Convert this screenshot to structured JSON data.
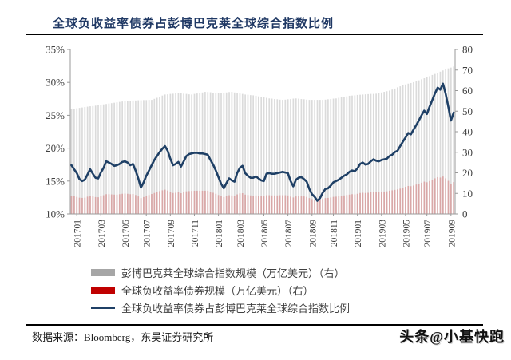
{
  "page": {
    "title": "全球负收益率债券占彭博巴克莱全球综合指数比例",
    "source_note": "数据来源：Bloomberg，东吴证券研究所",
    "watermark": "头条@小基快跑"
  },
  "colors": {
    "title_navy": "#1f3864",
    "line_navy": "#1f4066",
    "bar_gray": "#dbdbdb",
    "bar_red": "#d9a7a7",
    "legend_gray": "#a6a6a6",
    "legend_red": "#c00000",
    "axis_text": "#404040",
    "axis_line": "#9a9a9a"
  },
  "chart_data": {
    "type": "bar+line",
    "title": "全球负收益率债券占彭博巴克莱全球综合指数比例",
    "xlabel": "",
    "ylabel_left": "%",
    "ylabel_right": "万亿美元",
    "grid": false,
    "legend_position": "bottom-left",
    "left_axis": {
      "min": 10,
      "max": 35,
      "tick_values": [
        35,
        30,
        25,
        20,
        15,
        10
      ],
      "tick_labels": [
        "35%",
        "30%",
        "25%",
        "20%",
        "15%",
        "10%"
      ]
    },
    "right_axis": {
      "min": 0,
      "max": 80,
      "tick_values": [
        80,
        70,
        60,
        50,
        40,
        30,
        20,
        10,
        0
      ],
      "tick_labels": [
        "80",
        "70",
        "60",
        "50",
        "40",
        "30",
        "20",
        "10",
        "0"
      ]
    },
    "x_tick_labels": [
      "201701",
      "201703",
      "201705",
      "201707",
      "201709",
      "201711",
      "201801",
      "201803",
      "201805",
      "201807",
      "201809",
      "201811",
      "201901",
      "201903",
      "201905",
      "201907",
      "201909"
    ],
    "x_tick_week_indices": [
      2,
      11,
      20,
      28,
      37,
      46,
      55,
      63,
      72,
      81,
      90,
      98,
      107,
      116,
      125,
      133,
      142
    ],
    "x_resolution": "weekly, 2017-01 to 2019-09",
    "series": [
      {
        "name": "彭博巴克莱全球综合指数规模（万亿美元）（右）",
        "type": "bar",
        "axis": "right",
        "color": "#dbdbdb",
        "legend_color": "#a6a6a6",
        "values": [
          51.0,
          51.2,
          51.4,
          51.6,
          51.8,
          52.0,
          52.2,
          52.4,
          52.5,
          52.7,
          52.9,
          53.1,
          53.3,
          53.5,
          53.7,
          53.9,
          54.1,
          54.3,
          54.5,
          54.7,
          54.9,
          55.0,
          55.1,
          55.2,
          55.2,
          55.3,
          55.3,
          55.4,
          55.4,
          55.5,
          55.5,
          56.0,
          56.5,
          57.0,
          57.6,
          58.1,
          58.2,
          58.4,
          58.5,
          58.7,
          58.8,
          58.7,
          58.5,
          58.4,
          58.2,
          58.1,
          58.4,
          58.6,
          58.9,
          59.1,
          59.4,
          59.3,
          59.2,
          59.0,
          58.9,
          58.8,
          58.9,
          59.0,
          59.1,
          59.3,
          59.4,
          59.1,
          58.9,
          58.6,
          58.4,
          58.1,
          58.0,
          57.8,
          57.7,
          57.5,
          57.2,
          57.0,
          56.7,
          56.5,
          56.2,
          56.1,
          55.9,
          55.8,
          55.6,
          55.5,
          55.6,
          55.8,
          55.9,
          56.1,
          56.2,
          56.1,
          55.9,
          55.8,
          55.6,
          55.5,
          55.5,
          55.5,
          55.5,
          55.5,
          55.5,
          55.6,
          55.8,
          55.9,
          56.1,
          56.2,
          56.5,
          56.7,
          57.0,
          57.2,
          57.5,
          57.6,
          57.7,
          57.9,
          58.0,
          58.1,
          58.2,
          58.3,
          58.4,
          58.4,
          58.5,
          58.8,
          59.1,
          59.4,
          59.7,
          60.0,
          60.5,
          61.0,
          61.6,
          62.1,
          62.6,
          63.0,
          63.4,
          63.7,
          64.1,
          64.5,
          65.0,
          65.5,
          66.0,
          66.5,
          67.0,
          67.6,
          68.1,
          68.7,
          69.2,
          69.8,
          70.3,
          70.8,
          71.2,
          71.7
        ]
      },
      {
        "name": "全球负收益率债券规模（万亿美元）（右）",
        "type": "bar",
        "axis": "right",
        "color": "#d9a7a7",
        "legend_color": "#c00000",
        "values": [
          8.9,
          8.6,
          8.3,
          7.9,
          7.8,
          7.9,
          8.4,
          8.8,
          8.5,
          8.2,
          8.1,
          8.7,
          9.1,
          9.6,
          9.6,
          9.5,
          9.4,
          9.4,
          9.6,
          9.8,
          9.9,
          9.8,
          9.6,
          9.7,
          9.2,
          8.5,
          7.7,
          8.2,
          8.8,
          9.2,
          9.7,
          10.2,
          10.6,
          11.1,
          11.5,
          11.8,
          11.4,
          10.7,
          10.2,
          10.3,
          10.5,
          10.1,
          10.5,
          11.0,
          11.1,
          11.2,
          11.3,
          11.3,
          11.3,
          11.3,
          11.3,
          11.3,
          10.8,
          10.3,
          9.8,
          9.2,
          8.6,
          8.2,
          8.7,
          9.1,
          9.0,
          8.8,
          9.5,
          10.0,
          10.1,
          9.4,
          9.2,
          9.0,
          8.9,
          9.0,
          8.8,
          8.6,
          8.5,
          9.1,
          9.1,
          9.0,
          9.0,
          9.0,
          9.1,
          9.1,
          9.1,
          9.0,
          8.4,
          8.0,
          8.5,
          8.7,
          8.7,
          8.5,
          8.3,
          7.7,
          7.2,
          7.0,
          6.7,
          6.9,
          7.3,
          7.7,
          7.8,
          8.0,
          8.3,
          8.4,
          8.6,
          8.8,
          9.0,
          9.2,
          9.4,
          9.6,
          9.5,
          9.8,
          10.2,
          10.3,
          10.2,
          10.3,
          10.5,
          10.7,
          10.6,
          10.6,
          10.8,
          10.9,
          11.0,
          11.3,
          11.5,
          11.7,
          11.9,
          12.3,
          12.8,
          13.2,
          13.6,
          13.5,
          13.8,
          14.3,
          14.7,
          15.2,
          15.7,
          15.4,
          16.0,
          16.7,
          17.3,
          17.9,
          17.7,
          18.2,
          17.3,
          16.1,
          14.7,
          15.5
        ]
      },
      {
        "name": "全球负收益率债券占彭博巴克莱全球综合指数比例",
        "type": "line",
        "axis": "left",
        "color": "#1f4066",
        "legend_color": "#1f4066",
        "values": [
          17.4,
          16.8,
          16.2,
          15.3,
          15.0,
          15.2,
          16.0,
          16.8,
          16.1,
          15.5,
          15.4,
          16.3,
          17.0,
          18.0,
          17.8,
          17.6,
          17.3,
          17.4,
          17.6,
          17.9,
          18.0,
          17.8,
          17.4,
          17.6,
          16.6,
          15.4,
          14.0,
          14.8,
          15.8,
          16.6,
          17.4,
          18.2,
          18.8,
          19.4,
          19.9,
          20.3,
          19.6,
          18.4,
          17.4,
          17.6,
          17.9,
          17.2,
          18.0,
          18.8,
          19.1,
          19.2,
          19.3,
          19.3,
          19.2,
          19.2,
          19.1,
          19.0,
          18.2,
          17.5,
          16.6,
          15.6,
          14.6,
          13.9,
          14.7,
          15.4,
          15.1,
          14.9,
          16.2,
          17.0,
          17.3,
          16.2,
          15.8,
          15.5,
          15.5,
          15.7,
          15.4,
          15.1,
          15.0,
          16.1,
          16.2,
          16.1,
          16.1,
          16.2,
          16.3,
          16.4,
          16.3,
          16.2,
          15.0,
          14.2,
          15.2,
          15.5,
          15.6,
          15.3,
          14.9,
          13.8,
          13.0,
          12.6,
          12.0,
          12.4,
          13.2,
          13.8,
          13.9,
          14.3,
          14.8,
          15.0,
          15.2,
          15.5,
          15.8,
          16.0,
          16.4,
          16.6,
          16.5,
          16.9,
          17.6,
          17.8,
          17.5,
          17.6,
          18.0,
          18.3,
          18.1,
          18.0,
          18.2,
          18.3,
          18.4,
          18.8,
          19.0,
          19.4,
          19.6,
          20.3,
          21.0,
          21.6,
          22.3,
          22.1,
          22.8,
          23.5,
          24.2,
          25.0,
          25.7,
          25.2,
          26.3,
          27.3,
          28.3,
          29.2,
          28.9,
          29.8,
          28.3,
          26.3,
          24.2,
          25.4
        ]
      }
    ]
  }
}
